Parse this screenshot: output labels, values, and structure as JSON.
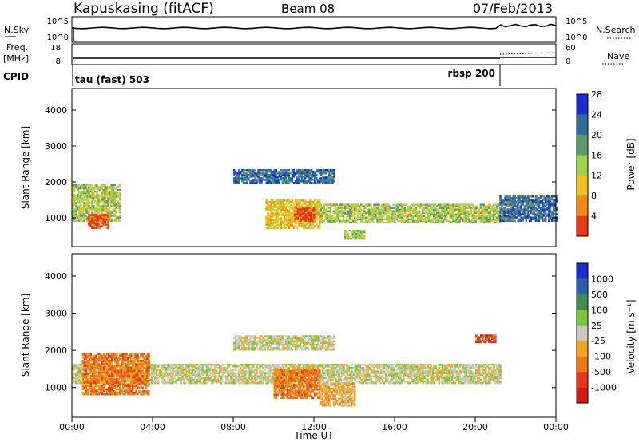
{
  "header": {
    "title": "Kapuskasing (fitACF)",
    "beam": "Beam 08",
    "date": "07/Feb/2013"
  },
  "noise_panel": {
    "left_label": "N.Sky",
    "right_label": "N.Search",
    "left_ticks": [
      "10^5",
      "10^0"
    ],
    "right_ticks": [
      "10^5",
      "10^0"
    ]
  },
  "freq_panel": {
    "left_label": "Freq.",
    "left_unit": "[MHz]",
    "right_label": "Nave",
    "left_ticks": [
      "18",
      "8"
    ],
    "right_ticks": [
      "60",
      "0"
    ]
  },
  "cpid": {
    "label": "CPID",
    "mode1": "tau (fast) 503",
    "mode2": "rbsp 200"
  },
  "chart_data": [
    {
      "type": "heatmap",
      "name": "power",
      "ylabel": "Slant Range [km]",
      "ylim": [
        200,
        4600
      ],
      "yticks": [
        "1000",
        "2000",
        "3000",
        "4000"
      ],
      "colorbar_label": "Power [dB]",
      "colorbar_ticks": [
        "4",
        "8",
        "12",
        "16",
        "20",
        "24",
        "28"
      ],
      "colorscale": [
        "#1a2ad4",
        "#2d6f9a",
        "#5b9a6f",
        "#9fd24a",
        "#f2c21a",
        "#f58a12",
        "#e83818"
      ],
      "bands": [
        {
          "t0": 0.0,
          "t1": 2.4,
          "r0": 900,
          "r1": 1900,
          "level": 3
        },
        {
          "t0": 0.8,
          "t1": 1.8,
          "r0": 700,
          "r1": 1100,
          "level": 6
        },
        {
          "t0": 9.6,
          "t1": 12.3,
          "r0": 700,
          "r1": 1500,
          "level": 4
        },
        {
          "t0": 11.0,
          "t1": 12.0,
          "r0": 900,
          "r1": 1300,
          "level": 6
        },
        {
          "t0": 12.3,
          "t1": 21.2,
          "r0": 850,
          "r1": 1350,
          "level": 3
        },
        {
          "t0": 13.5,
          "t1": 14.5,
          "r0": 400,
          "r1": 650,
          "level": 3
        },
        {
          "t0": 8.0,
          "t1": 13.0,
          "r0": 1950,
          "r1": 2350,
          "level": 1
        },
        {
          "t0": 21.2,
          "t1": 24.0,
          "r0": 900,
          "r1": 1600,
          "level": 1
        }
      ]
    },
    {
      "type": "heatmap",
      "name": "velocity",
      "ylabel": "Slant Range [km]",
      "xlabel": "Time UT",
      "ylim": [
        200,
        4600
      ],
      "yticks": [
        "1000",
        "2000",
        "3000",
        "4000"
      ],
      "colorbar_label": "Velocity [m s⁻¹]",
      "colorbar_ticks": [
        "1000",
        "500",
        "100",
        "25",
        "-25",
        "-100",
        "-500",
        "-1000"
      ],
      "colorscale": [
        "#1a2ad4",
        "#2c5fb0",
        "#3c8f4e",
        "#7bc83a",
        "#c9c9c0",
        "#f2a81a",
        "#f07a10",
        "#e83818",
        "#d81818"
      ],
      "bands": [
        {
          "t0": 0.0,
          "t1": 21.2,
          "r0": 1100,
          "r1": 1600,
          "level": 4
        },
        {
          "t0": 0.5,
          "t1": 3.8,
          "r0": 800,
          "r1": 1900,
          "level": 6
        },
        {
          "t0": 10.0,
          "t1": 12.3,
          "r0": 700,
          "r1": 1500,
          "level": 6
        },
        {
          "t0": 12.3,
          "t1": 14.0,
          "r0": 500,
          "r1": 1100,
          "level": 5
        },
        {
          "t0": 8.0,
          "t1": 13.0,
          "r0": 2000,
          "r1": 2400,
          "level": 4
        },
        {
          "t0": 20.0,
          "t1": 21.0,
          "r0": 2200,
          "r1": 2400,
          "level": 7
        }
      ]
    }
  ],
  "time_axis": {
    "ticks": [
      "00:00",
      "04:00",
      "08:00",
      "12:00",
      "16:00",
      "20:00",
      "00:00"
    ],
    "label": "Time UT"
  }
}
